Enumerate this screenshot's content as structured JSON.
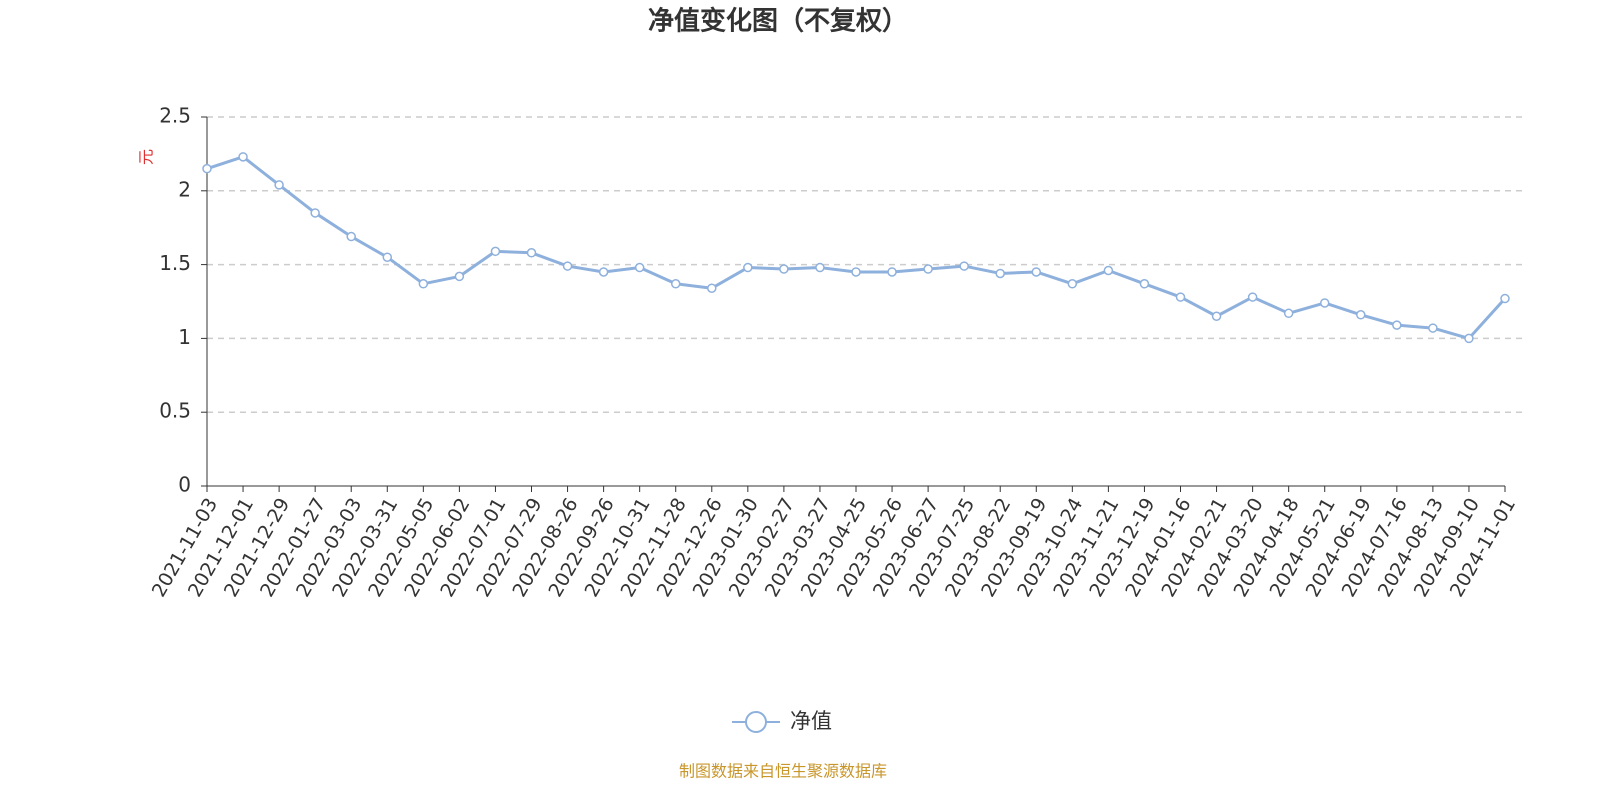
{
  "chart_data": {
    "type": "line",
    "title": "净值变化图（不复权）",
    "y_label": "元",
    "source": "制图数据来自恒生聚源数据库",
    "categories": [
      "2021-11-03",
      "2021-12-01",
      "2021-12-29",
      "2022-01-27",
      "2022-03-03",
      "2022-03-31",
      "2022-05-05",
      "2022-06-02",
      "2022-07-01",
      "2022-07-29",
      "2022-08-26",
      "2022-09-26",
      "2022-10-31",
      "2022-11-28",
      "2022-12-26",
      "2023-01-30",
      "2023-02-27",
      "2023-03-27",
      "2023-04-25",
      "2023-05-26",
      "2023-06-27",
      "2023-07-25",
      "2023-08-22",
      "2023-09-19",
      "2023-10-24",
      "2023-11-21",
      "2023-12-19",
      "2024-01-16",
      "2024-02-21",
      "2024-03-20",
      "2024-04-18",
      "2024-05-21",
      "2024-06-19",
      "2024-07-16",
      "2024-08-13",
      "2024-09-10",
      "2024-11-01"
    ],
    "series": [
      {
        "name": "净值",
        "color": "#8eb0dc",
        "values": [
          2.15,
          2.23,
          2.04,
          1.85,
          1.69,
          1.55,
          1.37,
          1.42,
          1.59,
          1.58,
          1.49,
          1.45,
          1.48,
          1.37,
          1.34,
          1.48,
          1.47,
          1.48,
          1.45,
          1.45,
          1.47,
          1.49,
          1.44,
          1.45,
          1.37,
          1.46,
          1.37,
          1.28,
          1.15,
          1.28,
          1.17,
          1.24,
          1.16,
          1.09,
          1.07,
          1.0,
          1.27
        ]
      }
    ],
    "ylim": [
      0,
      2.5
    ],
    "yticks": [
      0,
      0.5,
      1,
      1.5,
      2,
      2.5
    ],
    "grid": true,
    "legend": "bottom"
  }
}
